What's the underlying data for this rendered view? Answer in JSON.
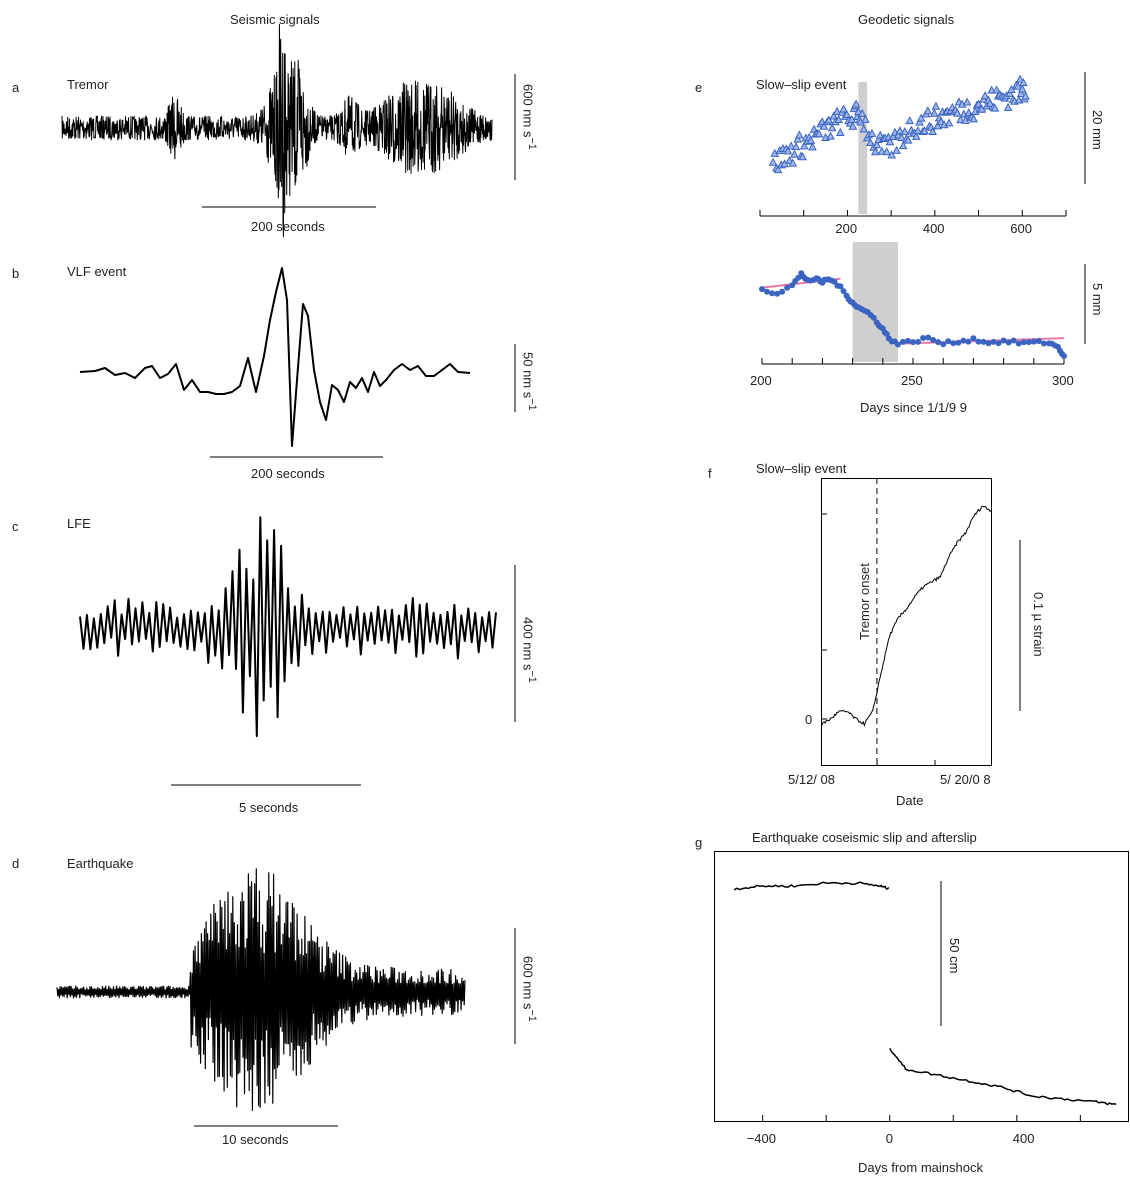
{
  "headers": {
    "seismic": "Seismic signals",
    "geodetic": "Geodetic signals"
  },
  "panels": {
    "a": {
      "letter": "a",
      "title": "Tremor",
      "time_scale": "200 seconds",
      "amp_scale": "600 nm s",
      "amp_unit_exp": "−1"
    },
    "b": {
      "letter": "b",
      "title": "VLF event",
      "time_scale": "200 seconds",
      "amp_scale": "50 nm s",
      "amp_unit_exp": "−1"
    },
    "c": {
      "letter": "c",
      "title": "LFE",
      "time_scale": "5 seconds",
      "amp_scale": "400 nm s",
      "amp_unit_exp": "−1"
    },
    "d": {
      "letter": "d",
      "title": "Earthquake",
      "time_scale": "10 seconds",
      "amp_scale": "600 nm s",
      "amp_unit_exp": "−1"
    },
    "e": {
      "letter": "e",
      "title": "Slow–slip event",
      "top_scale": "20 mm",
      "bottom_scale": "5 mm",
      "xlabel": "Days since 1/1/9 9"
    },
    "f": {
      "letter": "f",
      "title": "Slow–slip event",
      "annotation": "Tremor onset",
      "scale": "0.1 µ strain",
      "xlabel": "Date"
    },
    "g": {
      "letter": "g",
      "title": "Earthquake coseismic slip and afterslip",
      "scale": "50 cm",
      "xlabel": "Days from mainshock"
    }
  },
  "colors": {
    "trace": "#000000",
    "gps_points": "#3a63c2",
    "gps_fill": "#9fb6ea",
    "fit_line": "#e87aa3",
    "shade": "#cfcfcf"
  },
  "chart_data": [
    {
      "panel": "e-top",
      "type": "scatter",
      "title": "Slow–slip event",
      "x_ticks": [
        200,
        400,
        600
      ],
      "xlim": [
        0,
        700
      ],
      "x": [
        30,
        60,
        90,
        120,
        150,
        180,
        210,
        230,
        260,
        290,
        320,
        350,
        380,
        410,
        440,
        470,
        500,
        530,
        560,
        590,
        610
      ],
      "y": [
        2,
        4,
        6,
        8,
        10,
        12,
        13,
        14,
        7,
        5,
        8,
        11,
        12,
        13,
        14,
        15,
        16,
        17,
        18,
        19,
        20
      ],
      "marker": "triangle",
      "shaded_interval": [
        225,
        245
      ],
      "scale_bar": "20 mm"
    },
    {
      "panel": "e-bottom",
      "type": "scatter",
      "xlabel": "Days since 1/1/9 9",
      "x_ticks": [
        200,
        250,
        300
      ],
      "xlim": [
        200,
        300
      ],
      "x": [
        200,
        205,
        210,
        213,
        215,
        218,
        220,
        222,
        225,
        228,
        230,
        232,
        235,
        238,
        240,
        242,
        245,
        250,
        255,
        260,
        265,
        270,
        275,
        280,
        285,
        290,
        295,
        298,
        300
      ],
      "y": [
        12,
        11.2,
        12.6,
        14.6,
        13.6,
        13.6,
        13.2,
        13.8,
        12.8,
        10.8,
        9.6,
        8.6,
        7.8,
        6.2,
        4.8,
        3.2,
        2.2,
        2.6,
        3.2,
        2.2,
        2.6,
        3.0,
        2.4,
        2.6,
        2.4,
        2.4,
        2.4,
        1.6,
        0
      ],
      "marker": "circle",
      "fit_line": true,
      "shaded_interval": [
        230,
        245
      ],
      "scale_bar": "5 mm"
    },
    {
      "panel": "f",
      "type": "line",
      "title": "Slow–slip event",
      "xlabel": "Date",
      "x_ticks": [
        "5/12/ 08",
        "5/ 20/0 8"
      ],
      "y_ticks": [
        0
      ],
      "x": [
        0,
        0.4,
        0.8,
        1.2,
        1.6,
        2.0,
        2.4,
        2.8,
        3.2,
        3.6,
        4.0,
        4.4,
        4.8,
        5.2,
        5.6,
        6.0,
        6.4,
        6.8,
        7.2,
        7.6,
        8.0
      ],
      "y": [
        -0.02,
        0.0,
        0.03,
        0.03,
        0.0,
        -0.02,
        0.03,
        0.19,
        0.34,
        0.41,
        0.45,
        0.5,
        0.54,
        0.56,
        0.58,
        0.66,
        0.72,
        0.76,
        0.83,
        0.87,
        0.85
      ],
      "annotation": {
        "x": 2.6,
        "text": "Tremor onset"
      },
      "scale_bar": "0.1 µ strain"
    },
    {
      "panel": "g",
      "type": "line",
      "title": "Earthquake coseismic slip and afterslip",
      "xlabel": "Days from mainshock",
      "x_ticks": [
        -400,
        0,
        400
      ],
      "xlim": [
        -550,
        750
      ],
      "series": [
        {
          "x": [
            -490,
            -400,
            -300,
            -200,
            -100,
            -30,
            0
          ],
          "y": [
            0,
            1,
            1,
            2,
            2,
            1,
            0
          ]
        },
        {
          "x": [
            0,
            50,
            150,
            250,
            350,
            450,
            550,
            650,
            720
          ],
          "y": [
            -53,
            -60,
            -62,
            -64,
            -66,
            -69,
            -70,
            -71,
            -72
          ]
        }
      ],
      "scale_bar": "50 cm"
    }
  ]
}
